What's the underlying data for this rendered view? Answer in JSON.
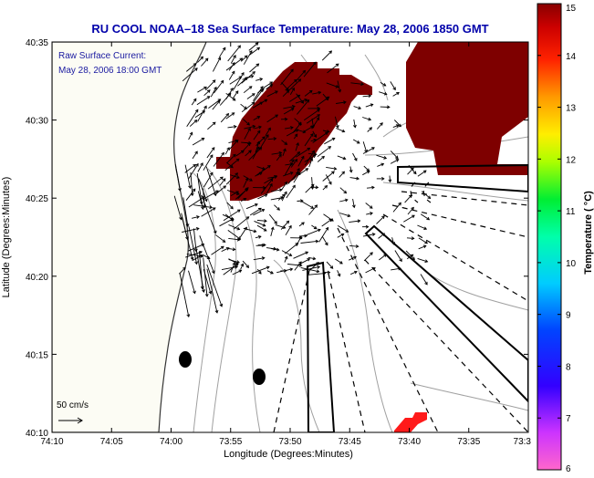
{
  "chart_data": {
    "type": "heatmap",
    "title": "RU COOL  NOAA–18  Sea Surface Temperature:  May 28, 2006 1850 GMT",
    "xlabel": "Longitude (Degrees:Minutes)",
    "ylabel": "Latitude (Degrees:Minutes)",
    "x_ticks": [
      "74:10",
      "74:05",
      "74:00",
      "73:55",
      "73:50",
      "73:45",
      "73:40",
      "73:35",
      "73:3"
    ],
    "y_ticks": [
      "40:35",
      "40:30",
      "40:25",
      "40:20",
      "40:15",
      "40:10"
    ],
    "colorbar": {
      "label": "Temperature ( °C)",
      "ticks": [
        "15",
        "14",
        "13",
        "12",
        "11",
        "10",
        "9",
        "8",
        "7",
        "6"
      ],
      "min": 6,
      "max": 15
    },
    "annotations": {
      "current_label": "Raw Surface Current:",
      "current_time": "May 28, 2006 18:00 GMT",
      "scale_label": "50 cm/s"
    },
    "colors": {
      "title": "#0000aa",
      "land": "#fcfcf4",
      "sst_patch": "#7e0000",
      "sst_warm": "#ff1a1a",
      "contour": "#a0a0a0",
      "vector": "#000000"
    }
  }
}
